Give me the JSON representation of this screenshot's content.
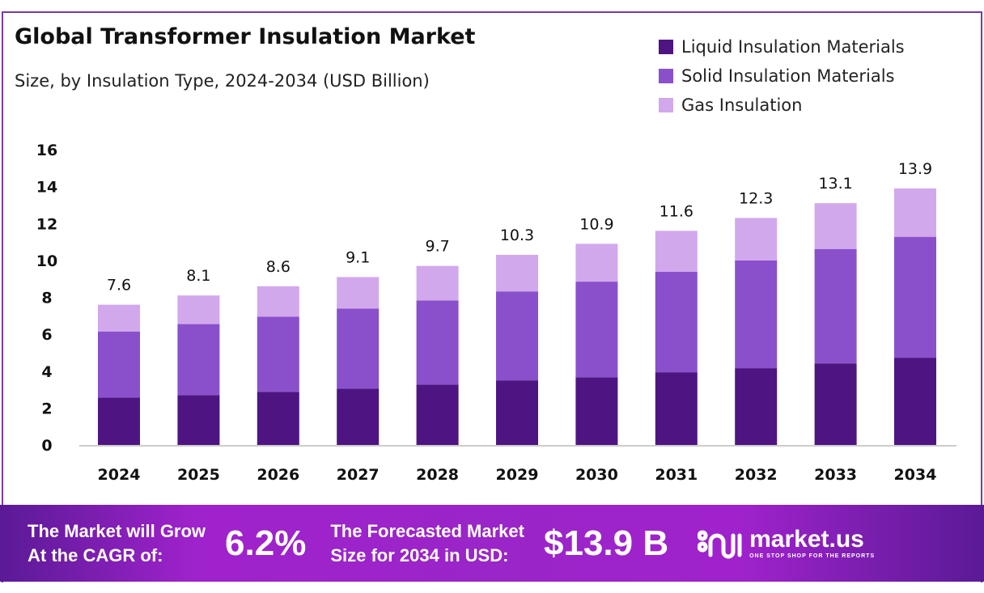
{
  "chart_data": {
    "type": "bar",
    "stacked": true,
    "title": "Global Transformer Insulation Market",
    "subtitle": "Size, by Insulation Type, 2024-2034 (USD Billion)",
    "categories": [
      "2024",
      "2025",
      "2026",
      "2027",
      "2028",
      "2029",
      "2030",
      "2031",
      "2032",
      "2033",
      "2034"
    ],
    "series": [
      {
        "name": "Liquid Insulation Materials",
        "color": "#4e1582",
        "values": [
          2.57,
          2.7,
          2.88,
          3.05,
          3.27,
          3.5,
          3.67,
          3.94,
          4.16,
          4.42,
          4.73
        ]
      },
      {
        "name": "Solid Insulation Materials",
        "color": "#8a50cc",
        "values": [
          3.58,
          3.85,
          4.07,
          4.34,
          4.56,
          4.82,
          5.18,
          5.44,
          5.84,
          6.2,
          6.55
        ]
      },
      {
        "name": "Gas Insulation",
        "color": "#d2a8ec",
        "values": [
          1.45,
          1.55,
          1.65,
          1.71,
          1.87,
          1.98,
          2.05,
          2.22,
          2.3,
          2.48,
          2.62
        ]
      }
    ],
    "totals": [
      "7.6",
      "8.1",
      "8.6",
      "9.1",
      "9.7",
      "10.3",
      "10.9",
      "11.6",
      "12.3",
      "13.1",
      "13.9"
    ],
    "yticks": [
      "0",
      "2",
      "4",
      "6",
      "8",
      "10",
      "12",
      "14",
      "16"
    ],
    "ylim": [
      0,
      16
    ],
    "grid": false,
    "legend": "top-right"
  },
  "footer": {
    "cagr_label_1": "The Market will Grow",
    "cagr_label_2": "At the CAGR of:",
    "cagr_value": "6.2%",
    "forecast_label_1": "The Forecasted Market",
    "forecast_label_2": "Size for 2034 in USD:",
    "forecast_value": "$13.9 B",
    "logo_text": "market.us",
    "logo_tagline": "ONE STOP SHOP FOR THE REPORTS"
  }
}
